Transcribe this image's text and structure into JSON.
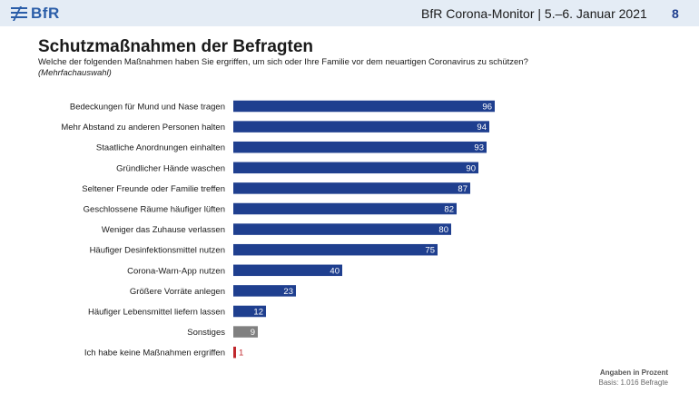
{
  "header": {
    "logo_text": "BfR",
    "title": "BfR Corona-Monitor | 5.–6. Januar 2021",
    "page_number": "8"
  },
  "content": {
    "title": "Schutzmaßnahmen der Befragten",
    "subtitle": "Welche der folgenden Maßnahmen haben Sie ergriffen, um sich oder Ihre Familie vor dem neuartigen Coronavirus zu schützen?",
    "note": "(Mehrfachauswahl)"
  },
  "footer": {
    "unit": "Angaben in Prozent",
    "basis": "Basis: 1.016 Befragte"
  },
  "colors": {
    "primary": "#1f3f8f",
    "other": "#808080",
    "none": "#c0282d",
    "header_bg": "#e4ecf5",
    "logo": "#2a5da8"
  },
  "chart_data": {
    "type": "bar",
    "orientation": "horizontal",
    "title": "Schutzmaßnahmen der Befragten",
    "xlim": [
      0,
      100
    ],
    "grid": false,
    "categories": [
      "Bedeckungen für Mund und Nase tragen",
      "Mehr Abstand zu anderen Personen halten",
      "Staatliche Anordnungen einhalten",
      "Gründlicher Hände waschen",
      "Seltener Freunde oder Familie treffen",
      "Geschlossene Räume häufiger lüften",
      "Weniger das Zuhause verlassen",
      "Häufiger Desinfektionsmittel nutzen",
      "Corona-Warn-App nutzen",
      "Größere Vorräte anlegen",
      "Häufiger Lebensmittel liefern lassen",
      "Sonstiges",
      "Ich habe keine Maßnahmen ergriffen"
    ],
    "values": [
      96,
      94,
      93,
      90,
      87,
      82,
      80,
      75,
      40,
      23,
      12,
      9,
      1
    ],
    "bar_colors": [
      "#1f3f8f",
      "#1f3f8f",
      "#1f3f8f",
      "#1f3f8f",
      "#1f3f8f",
      "#1f3f8f",
      "#1f3f8f",
      "#1f3f8f",
      "#1f3f8f",
      "#1f3f8f",
      "#1f3f8f",
      "#808080",
      "#c0282d"
    ]
  }
}
